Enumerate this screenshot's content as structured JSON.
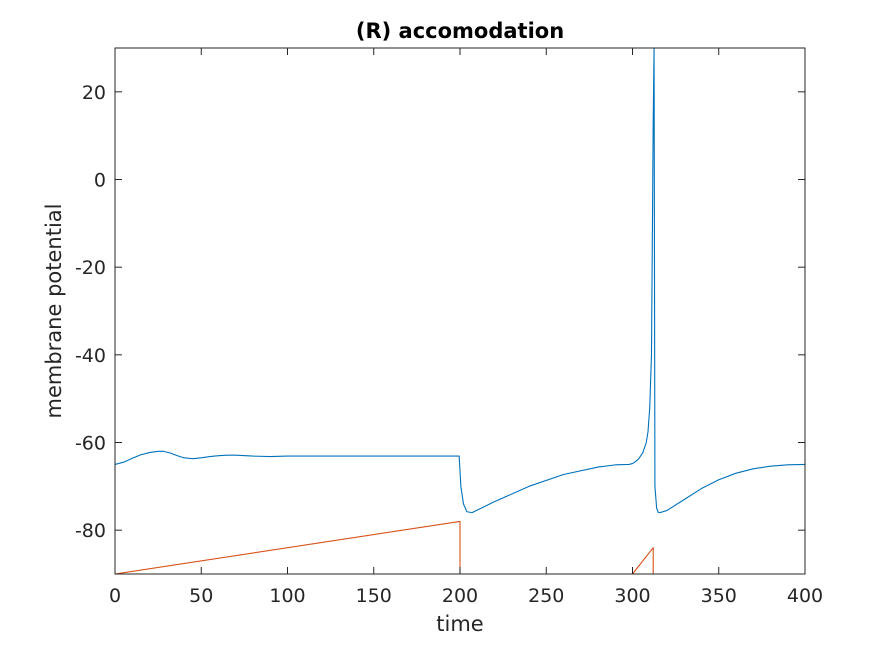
{
  "chart_data": {
    "type": "line",
    "title": "(R) accomodation",
    "xlabel": "time",
    "ylabel": "membrane potential",
    "xlim": [
      0,
      400
    ],
    "ylim": [
      -90,
      30
    ],
    "xticks": [
      0,
      50,
      100,
      150,
      200,
      250,
      300,
      350,
      400
    ],
    "yticks": [
      -80,
      -60,
      -40,
      -20,
      0,
      20
    ],
    "grid": false,
    "series": [
      {
        "color": "#0072BD",
        "x": [
          0,
          5,
          10,
          15,
          20,
          25,
          28,
          32,
          36,
          40,
          45,
          50,
          55,
          60,
          65,
          70,
          80,
          90,
          100,
          120,
          150,
          180,
          199.5,
          200.5,
          202,
          204,
          207,
          220,
          240,
          260,
          280,
          290,
          298,
          300,
          302,
          304,
          306,
          308,
          309,
          310,
          311,
          312,
          312.5,
          313,
          314,
          315,
          316,
          320,
          330,
          340,
          350,
          360,
          370,
          380,
          390,
          400
        ],
        "y": [
          -65,
          -64.5,
          -63.6,
          -62.8,
          -62.3,
          -62,
          -62,
          -62.4,
          -63,
          -63.5,
          -63.7,
          -63.5,
          -63.2,
          -63,
          -62.9,
          -62.9,
          -63.1,
          -63.2,
          -63.1,
          -63.1,
          -63.1,
          -63.1,
          -63.1,
          -70,
          -74,
          -75.8,
          -76,
          -73.5,
          -70,
          -67.3,
          -65.6,
          -65.1,
          -65,
          -64.8,
          -64.3,
          -63.5,
          -62.3,
          -60,
          -57.5,
          -52,
          -40,
          13,
          30,
          -70,
          -75,
          -76,
          -76,
          -75.5,
          -73,
          -70.5,
          -68.5,
          -67,
          -66,
          -65.4,
          -65.1,
          -65
        ]
      },
      {
        "color": "#D95319",
        "x": [
          0,
          200,
          200.01,
          300,
          312,
          312.01,
          400
        ],
        "y": [
          -90,
          -78,
          -90,
          -90,
          -84,
          -90,
          -90
        ]
      }
    ]
  }
}
